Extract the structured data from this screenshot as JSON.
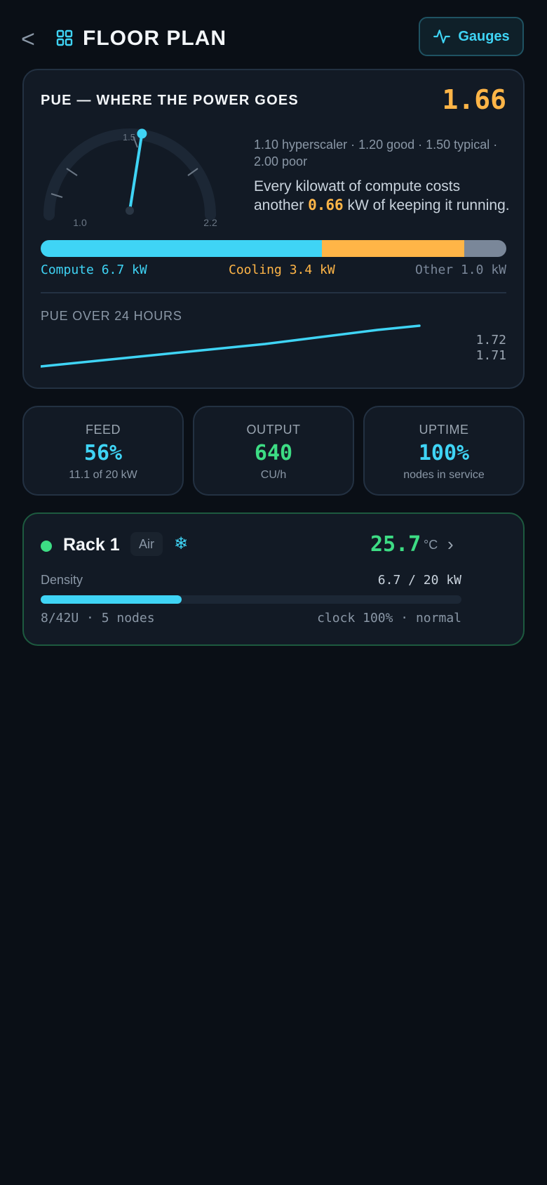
{
  "header": {
    "back_glyph": "<",
    "title": "FLOOR PLAN",
    "gauges_label": "Gauges",
    "icons": [
      "chevron-left-icon",
      "grid-icon",
      "activity-icon"
    ]
  },
  "pue": {
    "title": "PUE — WHERE THE POWER GOES",
    "value": "1.66",
    "gauge": {
      "min": 1.0,
      "max": 2.2,
      "tick_label": "1.5",
      "min_label": "1.0",
      "max_label": "2.2",
      "needle_value": 1.66
    },
    "reference": "1.10 hyperscaler · 1.20 good · 1.50 typical · 2.00 poor",
    "desc_pre": "Every kilowatt of compute costs another ",
    "desc_highlight": "0.66",
    "desc_post": " kW of keeping it running.",
    "split": {
      "compute_kw": 6.7,
      "cooling_kw": 3.4,
      "other_kw": 1.0,
      "compute_label": "Compute 6.7 kW",
      "cooling_label": "Cooling 3.4 kW",
      "other_label": "Other 1.0 kW"
    },
    "trend_title": "PUE OVER 24 HOURS",
    "trend_max": "1.72",
    "trend_min": "1.71"
  },
  "stats": [
    {
      "label": "FEED",
      "value": "56%",
      "sub": "11.1 of 20 kW"
    },
    {
      "label": "OUTPUT",
      "value": "640",
      "sub": "CU/h"
    },
    {
      "label": "UPTIME",
      "value": "100%",
      "sub": "nodes in service"
    }
  ],
  "rack": {
    "name": "Rack 1",
    "badge": "Air",
    "snow_glyph": "❄",
    "temperature": "25.7",
    "temp_unit": "°C",
    "chevron_glyph": "›",
    "density_label": "Density",
    "density_value": "6.7 / 20 kW",
    "density_fraction": 0.335,
    "footer_left": "8/42U · 5 nodes",
    "footer_right": "clock 100% · normal"
  },
  "colors": {
    "accent": "#3fd4f5",
    "warning": "#ffb547",
    "good": "#3ddc84",
    "other": "#7a8799"
  }
}
